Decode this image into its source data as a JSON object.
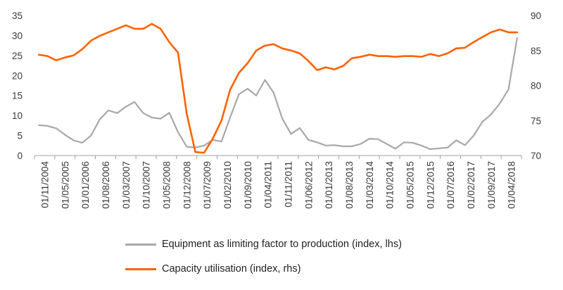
{
  "chart_data": {
    "type": "line",
    "title": "",
    "x": [
      "01/11/2004",
      "01/02/2005",
      "01/05/2005",
      "01/08/2005",
      "01/11/2005",
      "01/02/2006",
      "01/05/2006",
      "01/08/2006",
      "01/11/2006",
      "01/02/2007",
      "01/05/2007",
      "01/08/2007",
      "01/11/2007",
      "01/02/2008",
      "01/05/2008",
      "01/08/2008",
      "01/11/2008",
      "01/02/2009",
      "01/05/2009",
      "01/08/2009",
      "01/11/2009",
      "01/02/2010",
      "01/05/2010",
      "01/08/2010",
      "01/11/2010",
      "01/02/2011",
      "01/05/2011",
      "01/08/2011",
      "01/11/2011",
      "01/02/2012",
      "01/05/2012",
      "01/08/2012",
      "01/11/2012",
      "01/02/2013",
      "01/05/2013",
      "01/08/2013",
      "01/11/2013",
      "01/02/2014",
      "01/05/2014",
      "01/08/2014",
      "01/11/2014",
      "01/02/2015",
      "01/05/2015",
      "01/08/2015",
      "01/11/2015",
      "01/02/2016",
      "01/05/2016",
      "01/08/2016",
      "01/11/2016",
      "01/02/2017",
      "01/05/2017",
      "01/08/2017",
      "01/11/2017",
      "01/02/2018",
      "01/05/2018",
      "01/08/2018"
    ],
    "x_tick_labels": [
      "01/11/2004",
      "01/05/2005",
      "01/01/2006",
      "01/08/2006",
      "01/03/2007",
      "01/10/2007",
      "01/05/2008",
      "01/12/2008",
      "01/07/2009",
      "01/02/2010",
      "01/09/2010",
      "01/04/2011",
      "01/11/2011",
      "01/06/2012",
      "01/01/2013",
      "01/08/2013",
      "01/03/2014",
      "01/10/2014",
      "01/05/2015",
      "01/12/2015",
      "01/07/2016",
      "01/02/2017",
      "01/09/2017",
      "01/04/2018"
    ],
    "ylim_left": [
      0,
      35
    ],
    "yticks_left": [
      0,
      5,
      10,
      15,
      20,
      25,
      30,
      35
    ],
    "ylim_right": [
      70,
      90
    ],
    "yticks_right": [
      70,
      75,
      80,
      85,
      90
    ],
    "grid": false,
    "legend_position": "bottom",
    "series": [
      {
        "name": "Equipment as limiting factor to production (index, lhs)",
        "axis": "left",
        "color": "#a8a8a8",
        "values": [
          7.6,
          7.4,
          6.8,
          5.2,
          3.8,
          3.2,
          5.0,
          9.0,
          11.3,
          10.6,
          12.2,
          13.4,
          10.6,
          9.5,
          9.2,
          10.7,
          5.9,
          2.2,
          2.0,
          2.5,
          3.9,
          3.5,
          9.5,
          15.3,
          16.7,
          15.0,
          18.9,
          15.7,
          9.2,
          5.4,
          6.9,
          3.9,
          3.3,
          2.5,
          2.6,
          2.3,
          2.3,
          2.9,
          4.2,
          4.1,
          2.9,
          1.7,
          3.3,
          3.2,
          2.5,
          1.6,
          1.8,
          2.0,
          3.8,
          2.6,
          5.0,
          8.4,
          10.3,
          13.0,
          16.5,
          29.4
        ]
      },
      {
        "name": "Capacity utilisation (index, rhs)",
        "axis": "right",
        "color": "#ff6200",
        "values": [
          84.4,
          84.2,
          83.6,
          84.0,
          84.3,
          85.2,
          86.4,
          87.1,
          87.6,
          88.1,
          88.6,
          88.1,
          88.1,
          88.8,
          88.1,
          86.2,
          84.7,
          76.0,
          70.5,
          70.4,
          72.4,
          75.0,
          79.4,
          81.8,
          83.2,
          85.0,
          85.7,
          85.9,
          85.3,
          85.0,
          84.6,
          83.5,
          82.2,
          82.6,
          82.3,
          82.8,
          83.9,
          84.1,
          84.4,
          84.2,
          84.2,
          84.1,
          84.2,
          84.2,
          84.1,
          84.5,
          84.2,
          84.6,
          85.3,
          85.4,
          86.2,
          86.9,
          87.6,
          88.0,
          87.6,
          87.6
        ]
      }
    ]
  }
}
